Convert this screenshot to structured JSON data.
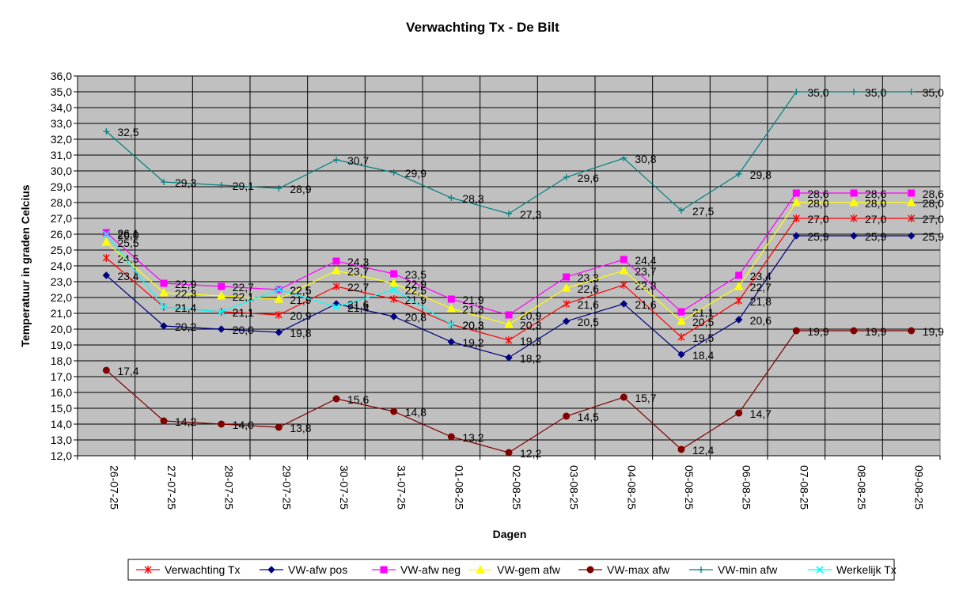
{
  "chart_data": {
    "type": "line",
    "title": "Verwachting Tx - De Bilt",
    "xlabel": "Dagen",
    "ylabel": "Temperatuur in graden Celcius",
    "ylim": [
      12,
      36
    ],
    "ytick_step": 1,
    "grid": true,
    "legend_position": "bottom",
    "plot_background": "#c0c0c0",
    "categories": [
      "26-07-25",
      "27-07-25",
      "28-07-25",
      "29-07-25",
      "30-07-25",
      "31-07-25",
      "01-08-25",
      "02-08-25",
      "03-08-25",
      "04-08-25",
      "05-08-25",
      "06-08-25",
      "07-08-25",
      "08-08-25",
      "09-08-25"
    ],
    "series": [
      {
        "name": "Verwachting Tx",
        "color": "#ff0000",
        "marker": "star",
        "values": [
          24.5,
          21.4,
          21.1,
          20.9,
          22.7,
          21.9,
          20.3,
          19.3,
          21.6,
          22.8,
          19.5,
          21.8,
          27.0,
          27.0,
          27.0
        ],
        "labels": [
          "24,5",
          "21,4",
          "21,1",
          "20,9",
          "22,7",
          "21,9",
          "20,3",
          "19,3",
          "21,6",
          "22,8",
          "19,5",
          "21,8",
          "27,0",
          "27,0",
          "27,0"
        ]
      },
      {
        "name": "VW-afw pos",
        "color": "#000080",
        "marker": "diamond",
        "values": [
          23.4,
          20.2,
          20.0,
          19.8,
          21.6,
          20.8,
          19.2,
          18.2,
          20.5,
          21.6,
          18.4,
          20.6,
          25.9,
          25.9,
          25.9
        ],
        "labels": [
          "23,4",
          "20,2",
          "20,0",
          "19,8",
          "21,6",
          "20,8",
          "19,2",
          "18,2",
          "20,5",
          "21,6",
          "18,4",
          "20,6",
          "25,9",
          "25,9",
          "25,9"
        ]
      },
      {
        "name": "VW-afw neg",
        "color": "#ff00ff",
        "marker": "square",
        "values": [
          26.1,
          22.9,
          22.7,
          22.5,
          24.3,
          23.5,
          21.9,
          20.9,
          23.3,
          24.4,
          21.1,
          23.4,
          28.6,
          28.6,
          28.6
        ],
        "labels": [
          "26,1",
          "22,9",
          "22,7",
          "22,5",
          "24,3",
          "23,5",
          "21,9",
          "20,9",
          "23,3",
          "24,4",
          "21,1",
          "23,4",
          "28,6",
          "28,6",
          "28,6"
        ]
      },
      {
        "name": "VW-gem afw",
        "color": "#ffff00",
        "marker": "triangle",
        "values": [
          25.5,
          22.3,
          22.1,
          21.9,
          23.7,
          22.9,
          21.3,
          20.3,
          22.6,
          23.7,
          20.5,
          22.7,
          28.0,
          28.0,
          28.0
        ],
        "labels": [
          "25,5",
          "22,3",
          "22,1",
          "21,9",
          "23,7",
          "22,9",
          "21,3",
          "20,3",
          "22,6",
          "23,7",
          "20,5",
          "22,7",
          "28,0",
          "28,0",
          "28,0"
        ]
      },
      {
        "name": "VW-max afw",
        "color": "#800000",
        "marker": "circle",
        "values": [
          17.4,
          14.2,
          14.0,
          13.8,
          15.6,
          14.8,
          13.2,
          12.2,
          14.5,
          15.7,
          12.4,
          14.7,
          19.9,
          19.9,
          19.9
        ],
        "labels": [
          "17,4",
          "14,2",
          "14,0",
          "13,8",
          "15,6",
          "14,8",
          "13,2",
          "12,2",
          "14,5",
          "15,7",
          "12,4",
          "14,7",
          "19,9",
          "19,9",
          "19,9"
        ]
      },
      {
        "name": "VW-min afw",
        "color": "#008080",
        "marker": "plus",
        "values": [
          32.5,
          29.3,
          29.1,
          28.9,
          30.7,
          29.9,
          28.3,
          27.3,
          29.6,
          30.8,
          27.5,
          29.8,
          35.0,
          35.0,
          35.0
        ],
        "labels": [
          "32,5",
          "29,3",
          "29,1",
          "28,9",
          "30,7",
          "29,9",
          "28,3",
          "27,3",
          "29,6",
          "30,8",
          "27,5",
          "29,8",
          "35,0",
          "35,0",
          "35,0"
        ]
      },
      {
        "name": "Werkelijk Tx",
        "color": "#00ffff",
        "marker": "x",
        "values": [
          26.0,
          21.4,
          21.1,
          22.5,
          21.4,
          22.5,
          20.3,
          null,
          null,
          null,
          null,
          null,
          null,
          null,
          null
        ],
        "labels": [
          "26,0",
          "21,4",
          "21,1",
          "22,5",
          "21,4",
          "22,5",
          "20,3",
          null,
          null,
          null,
          null,
          null,
          null,
          null,
          null
        ]
      }
    ]
  }
}
